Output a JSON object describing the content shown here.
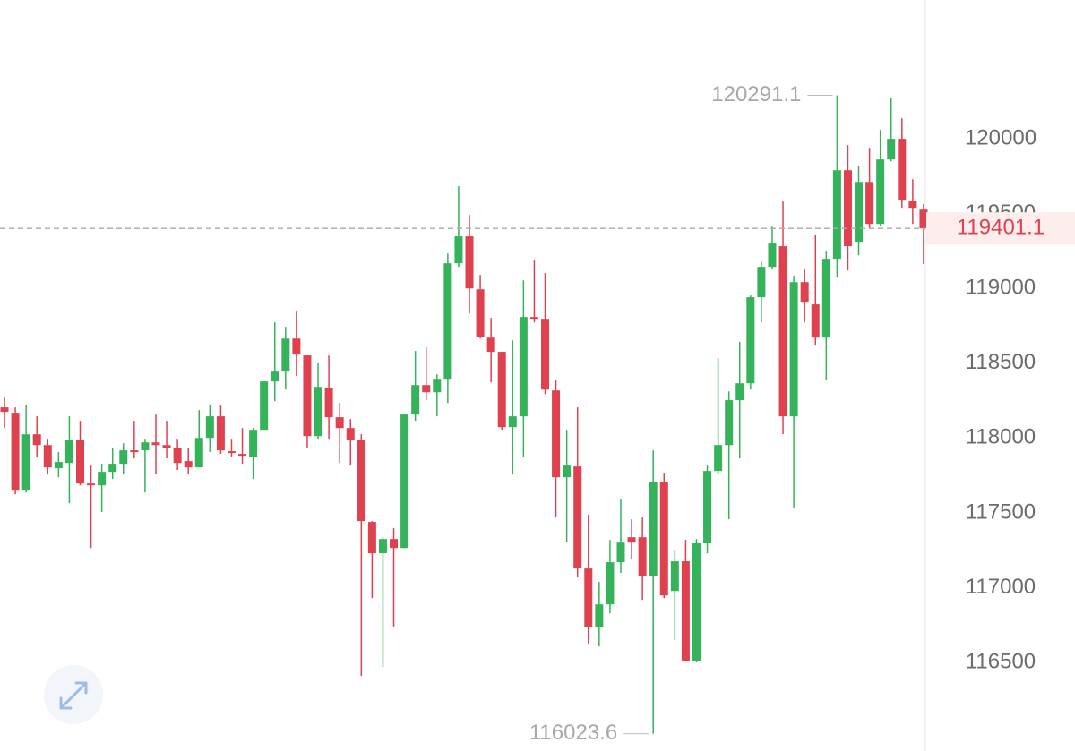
{
  "chart_data": {
    "type": "candlestick",
    "up_color": "#34b35a",
    "down_color": "#e0414f",
    "ylim": [
      115908,
      120928
    ],
    "yticks": [
      116500,
      117000,
      117500,
      118000,
      118500,
      119000,
      119500,
      120000
    ],
    "grid": false,
    "open": [
      118205,
      118169,
      117654,
      118025,
      117953,
      117798,
      117834,
      117989,
      117696,
      117684,
      117774,
      117828,
      117918,
      117918,
      117971,
      117953,
      117936,
      117846,
      117804,
      118001,
      118145,
      117912,
      117894,
      117876,
      118055,
      118378,
      118444,
      118665,
      118552,
      118013,
      118336,
      118139,
      118067,
      117989,
      117439,
      117230,
      117325,
      117265,
      118157,
      118354,
      118306,
      118396,
      119168,
      119348,
      118994,
      118671,
      118576,
      118073,
      118145,
      118809,
      118797,
      118318,
      117738,
      117810,
      117128,
      116739,
      116888,
      117170,
      117337,
      117337,
      117080,
      117708,
      116978,
      117176,
      116512,
      117296,
      117780,
      117953,
      118253,
      118366,
      118941,
      119144,
      119282,
      118145,
      119042,
      118893,
      118671,
      119198,
      119790,
      119312,
      119712,
      119431,
      119862,
      120000,
      119587,
      119527
    ],
    "high": [
      118276,
      118205,
      118223,
      118145,
      117995,
      117906,
      118145,
      118115,
      117816,
      117828,
      117936,
      117965,
      118115,
      117995,
      118157,
      118115,
      117995,
      117936,
      118187,
      118223,
      118223,
      117995,
      118067,
      118067,
      118378,
      118773,
      118743,
      118845,
      118552,
      118504,
      118552,
      118235,
      118127,
      118025,
      117445,
      117337,
      117397,
      118157,
      118582,
      118606,
      118426,
      119234,
      119683,
      119491,
      119090,
      118803,
      118576,
      118653,
      119054,
      119192,
      119102,
      118384,
      118055,
      118205,
      117487,
      117038,
      117319,
      117594,
      117457,
      117469,
      117918,
      117768,
      117247,
      117319,
      117325,
      117816,
      118534,
      118312,
      118642,
      118953,
      119180,
      119413,
      119581,
      119084,
      119132,
      119359,
      119252,
      120291.1,
      119958,
      119820,
      119940,
      120059,
      120270,
      120137,
      119730,
      119563
    ],
    "low": [
      118067,
      117624,
      117636,
      117876,
      117756,
      117738,
      117565,
      117684,
      117265,
      117505,
      117726,
      117756,
      117864,
      117636,
      117756,
      117864,
      117786,
      117756,
      117804,
      117906,
      117894,
      117876,
      117828,
      117726,
      118067,
      118247,
      118324,
      118414,
      117936,
      117995,
      117995,
      117834,
      117816,
      116410,
      116930,
      116470,
      116739,
      117265,
      118115,
      118253,
      118145,
      118235,
      119144,
      118833,
      118665,
      118372,
      118055,
      117756,
      117876,
      118773,
      118294,
      117469,
      117307,
      117068,
      116619,
      116607,
      116829,
      117098,
      117188,
      116918,
      116023.6,
      116930,
      116649,
      116512,
      116500,
      117230,
      117756,
      117457,
      117864,
      118324,
      118773,
      119132,
      118025,
      117529,
      118773,
      118624,
      118384,
      119072,
      119120,
      119222,
      119401,
      119419,
      119850,
      119539,
      119431,
      119162
    ],
    "close": [
      118175,
      117654,
      118025,
      117953,
      117804,
      117840,
      117989,
      117696,
      117684,
      117774,
      117828,
      117918,
      117906,
      117971,
      117953,
      117936,
      117834,
      117804,
      118001,
      118145,
      117918,
      117900,
      117882,
      118055,
      118378,
      118444,
      118665,
      118558,
      118013,
      118342,
      118139,
      118067,
      117989,
      117445,
      117230,
      117325,
      117265,
      118157,
      118354,
      118306,
      118396,
      119168,
      119348,
      119000,
      118677,
      118576,
      118073,
      118145,
      118809,
      118797,
      118324,
      117738,
      117816,
      117128,
      116739,
      116888,
      117170,
      117301,
      117301,
      117080,
      117708,
      116948,
      117176,
      116512,
      117296,
      117780,
      117953,
      118253,
      118366,
      118941,
      119144,
      119300,
      118145,
      119042,
      118911,
      118671,
      119198,
      119790,
      119282,
      119712,
      119431,
      119862,
      120000,
      119593,
      119539,
      119401.1
    ]
  }
}
